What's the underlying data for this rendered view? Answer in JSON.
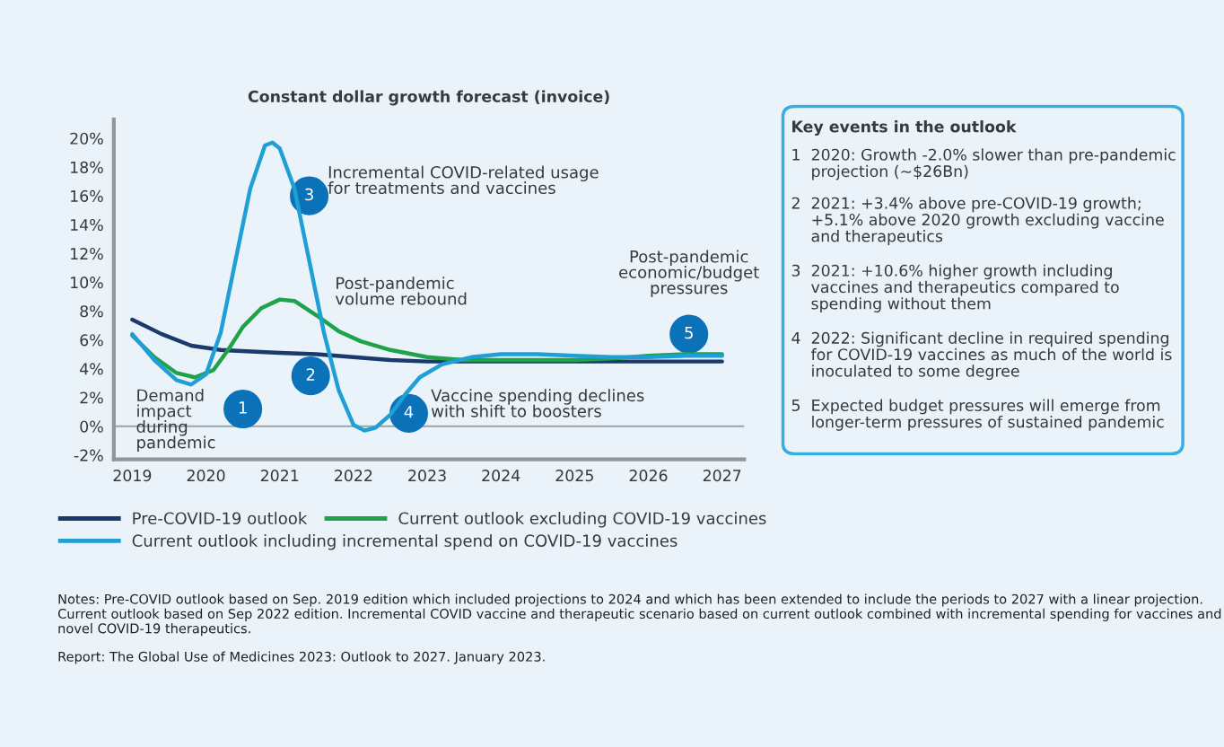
{
  "chart_data": [
    {
      "type": "line",
      "title": "Constant dollar growth forecast (invoice)",
      "xlim": [
        2018.75,
        2027.3
      ],
      "xticks": [
        2019,
        2020,
        2021,
        2022,
        2023,
        2024,
        2025,
        2026,
        2027
      ],
      "ylim": [
        -2.3,
        21.3
      ],
      "yticks": [
        {
          "value": -2,
          "label": "-2%"
        },
        {
          "value": 0,
          "label": "0%"
        },
        {
          "value": 2,
          "label": "2%"
        },
        {
          "value": 4,
          "label": "4%"
        },
        {
          "value": 6,
          "label": "6%"
        },
        {
          "value": 8,
          "label": "8%"
        },
        {
          "value": 10,
          "label": "10%"
        },
        {
          "value": 12,
          "label": "12%"
        },
        {
          "value": 14,
          "label": "14%"
        },
        {
          "value": 16,
          "label": "16%"
        },
        {
          "value": 18,
          "label": "18%"
        },
        {
          "value": 20,
          "label": "20%"
        }
      ],
      "grid": false,
      "legend": "bottom",
      "marker": "none",
      "line_style": "solid",
      "ref_lines": [
        {
          "axis": "y",
          "value": 0,
          "color": "#9aa3aa"
        }
      ],
      "series": [
        {
          "name": "Pre-COVID-19 outlook",
          "color": "#1b3a6b",
          "x": [
            2019,
            2019.4,
            2019.8,
            2020.2,
            2021,
            2021.5,
            2022,
            2022.5,
            2023,
            2024,
            2027
          ],
          "values": [
            7.4,
            6.4,
            5.6,
            5.3,
            5.1,
            5.0,
            4.8,
            4.6,
            4.5,
            4.5,
            4.5
          ]
        },
        {
          "name": "Current outlook excluding COVID-19 vaccines",
          "color": "#1fa24a",
          "x": [
            2019,
            2019.3,
            2019.6,
            2019.85,
            2020.1,
            2020.3,
            2020.5,
            2020.75,
            2021.0,
            2021.2,
            2021.5,
            2021.8,
            2022.1,
            2022.5,
            2023,
            2023.5,
            2024,
            2025,
            2025.5,
            2026,
            2026.5,
            2027
          ],
          "values": [
            6.3,
            4.8,
            3.7,
            3.4,
            3.9,
            5.3,
            6.9,
            8.2,
            8.8,
            8.7,
            7.7,
            6.6,
            5.9,
            5.3,
            4.8,
            4.6,
            4.6,
            4.6,
            4.7,
            4.9,
            5.0,
            5.0
          ]
        },
        {
          "name": "Current outlook including incremental spend on COVID-19 vaccines",
          "color": "#1f9fd6",
          "x": [
            2019,
            2019.3,
            2019.6,
            2019.8,
            2020.0,
            2020.2,
            2020.4,
            2020.6,
            2020.8,
            2020.9,
            2021.0,
            2021.2,
            2021.4,
            2021.6,
            2021.8,
            2022.0,
            2022.15,
            2022.3,
            2022.5,
            2022.7,
            2022.9,
            2023.2,
            2023.6,
            2024.0,
            2024.5,
            2025,
            2025.5,
            2026,
            2026.5,
            2027
          ],
          "values": [
            6.4,
            4.6,
            3.2,
            2.9,
            3.6,
            6.5,
            11.5,
            16.5,
            19.5,
            19.7,
            19.3,
            16.5,
            11.5,
            6.5,
            2.5,
            0.1,
            -0.3,
            -0.1,
            0.8,
            2.2,
            3.4,
            4.3,
            4.8,
            5.0,
            5.0,
            4.9,
            4.8,
            4.8,
            4.9,
            4.9
          ]
        }
      ],
      "annotations": [
        "Demand\nimpact\nduring\npandemic",
        "1",
        "3",
        "Incremental COVID-related usage\nfor treatments and vaccines",
        "Post-pandemic\nvolume rebound",
        "2",
        "4",
        "Vaccine spending declines\nwith shift to boosters",
        "Post-pandemic\neconomic/budget\npressures",
        "5",
        "Notes: Pre-COVID outlook based on Sep. 2019 edition which included projections to 2024 and which has been extended to include the periods to 2027 with a linear projection. Current outlook based on Sep 2022 edition. Incremental COVID vaccine and therapeutic scenario based on current outlook combined with incremental spending for vaccines and novel COVID-19 therapeutics.",
        "Report: The Global Use of Medicines 2023: Outlook to 2027. January 2023."
      ]
    },
    {
      "type": "other",
      "title": "Key events in the outlook",
      "annotations": [
        "1  2020: Growth -2.0% slower than pre-pandemic\n    projection (~$26Bn)",
        "2  2021: +3.4% above pre-COVID-19 growth;\n    +5.1% above 2020 growth excluding vaccine\n    and therapeutics",
        "3  2021: +10.6% higher growth including\n    vaccines and therapeutics compared to\n    spending without them",
        "4  2022: Significant decline in required spending\n    for COVID-19 vaccines as much of the world is\n    inoculated to some degree",
        "5  Expected budget pressures will emerge from\n    longer-term pressures of sustained pandemic"
      ]
    }
  ]
}
